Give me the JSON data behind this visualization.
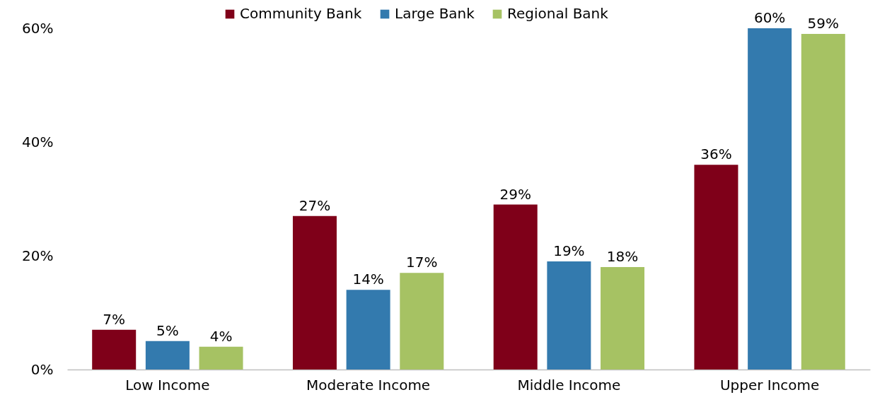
{
  "chart_data": {
    "type": "bar",
    "categories": [
      "Low Income",
      "Moderate Income",
      "Middle Income",
      "Upper Income"
    ],
    "series": [
      {
        "name": "Community Bank",
        "color": "#7f0019",
        "values": [
          7,
          27,
          29,
          36
        ],
        "value_labels": [
          "7%",
          "27%",
          "29%",
          "36%"
        ]
      },
      {
        "name": "Large Bank",
        "color": "#337aae",
        "values": [
          5,
          14,
          19,
          60
        ],
        "value_labels": [
          "5%",
          "14%",
          "19%",
          "60%"
        ]
      },
      {
        "name": "Regional Bank",
        "color": "#a6c263",
        "values": [
          4,
          17,
          18,
          59
        ],
        "value_labels": [
          "4%",
          "17%",
          "18%",
          "59%"
        ]
      }
    ],
    "ylim": [
      0,
      60
    ],
    "yticks": [
      {
        "value": 0,
        "label": "0%"
      },
      {
        "value": 20,
        "label": "20%"
      },
      {
        "value": 40,
        "label": "40%"
      },
      {
        "value": 60,
        "label": "60%"
      }
    ],
    "grid": false,
    "legend": "top"
  }
}
